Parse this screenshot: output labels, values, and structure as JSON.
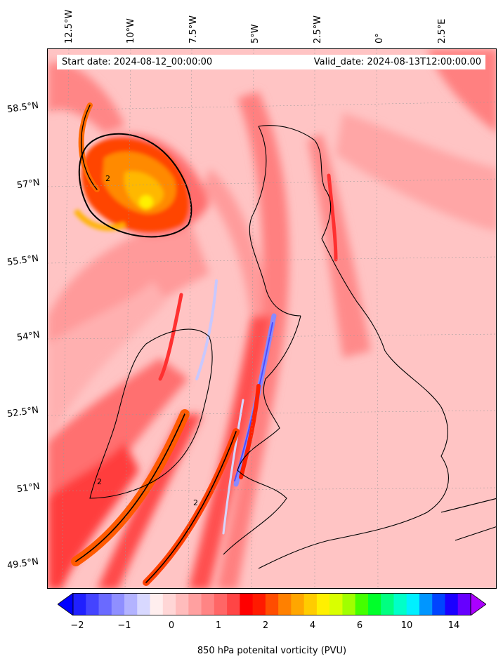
{
  "header": {
    "start_date": "Start date: 2024-08-12_00:00:00",
    "valid_date": "Valid_date: 2024-08-13T12:00:00.00"
  },
  "longitude_labels": [
    "12.5°W",
    "10°W",
    "7.5°W",
    "5°W",
    "2.5°W",
    "0°",
    "2.5°E"
  ],
  "latitude_labels": [
    "58.5°N",
    "57°N",
    "55.5°N",
    "54°N",
    "52.5°N",
    "51°N",
    "49.5°N"
  ],
  "contour_label": "2",
  "colorbar": {
    "title": "850 hPa potenital vorticity (PVU)",
    "ticks": [
      "−2",
      "−1",
      "0",
      "1",
      "2",
      "4",
      "6",
      "10",
      "14"
    ],
    "colors": [
      "#0000ff",
      "#2020ff",
      "#4444ff",
      "#6a6aff",
      "#8f8fff",
      "#b3b3ff",
      "#d8d8ff",
      "#ffeeee",
      "#ffd6d6",
      "#ffbcbc",
      "#ffa0a0",
      "#ff8484",
      "#ff6666",
      "#ff4545",
      "#ff0000",
      "#ff1a00",
      "#ff4d00",
      "#ff8000",
      "#ffa600",
      "#ffcc00",
      "#fff000",
      "#d9ff00",
      "#a0ff00",
      "#44ff00",
      "#00ff2a",
      "#00ff80",
      "#00ffc8",
      "#00f0ff",
      "#0096ff",
      "#0044ff",
      "#1a00ff",
      "#6600ff",
      "#aa00ff"
    ]
  }
}
